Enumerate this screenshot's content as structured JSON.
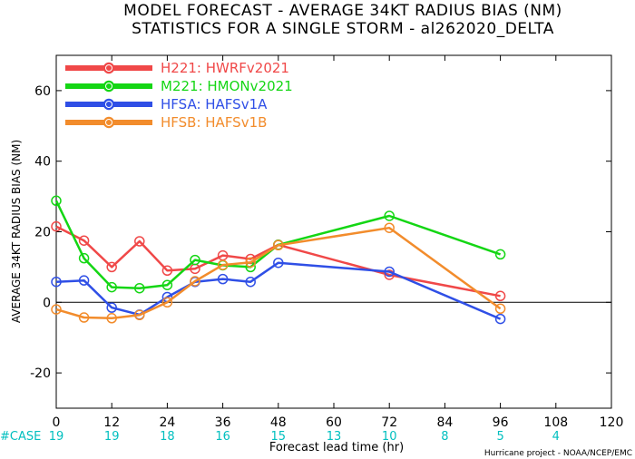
{
  "chart_data": {
    "type": "line",
    "title": "MODEL FORECAST - AVERAGE 34KT RADIUS BIAS (NM)",
    "subtitle": "STATISTICS FOR A SINGLE STORM - al262020_DELTA",
    "xlabel": "Forecast lead time (hr)",
    "ylabel": "AVERAGE 34KT RADIUS BIAS (NM)",
    "xlim": [
      0,
      120
    ],
    "ylim": [
      -30,
      70
    ],
    "x_ticks": [
      0,
      12,
      24,
      36,
      48,
      60,
      72,
      84,
      96,
      108,
      120
    ],
    "y_ticks": [
      -20,
      0,
      20,
      40,
      60
    ],
    "zero_line": true,
    "legend_position": "top-left",
    "series": [
      {
        "name": "H221: HWRFv2021",
        "color": "#f04848",
        "x": [
          0,
          6,
          12,
          18,
          24,
          30,
          36,
          42,
          48,
          72,
          96
        ],
        "values": [
          21.5,
          17.5,
          10,
          17.3,
          9,
          9.5,
          13.3,
          12.3,
          16.3,
          7.8,
          1.8
        ]
      },
      {
        "name": "M221: HMONv2021",
        "color": "#14d614",
        "x": [
          0,
          6,
          12,
          18,
          24,
          30,
          36,
          42,
          48,
          72,
          96
        ],
        "values": [
          28.8,
          12.5,
          4.3,
          4,
          4.9,
          12,
          10.5,
          10,
          16.3,
          24.5,
          13.6
        ]
      },
      {
        "name": "HFSA: HAFSv1A",
        "color": "#2f4fe6",
        "x": [
          0,
          6,
          12,
          18,
          24,
          30,
          36,
          42,
          48,
          72,
          96
        ],
        "values": [
          5.8,
          6.2,
          -1.5,
          -3.5,
          1.5,
          5.8,
          6.6,
          5.8,
          11.2,
          8.7,
          -4.7
        ]
      },
      {
        "name": "HFSB: HAFSv1B",
        "color": "#f28c2c",
        "x": [
          0,
          6,
          12,
          18,
          24,
          30,
          36,
          42,
          48,
          72,
          96
        ],
        "values": [
          -2,
          -4.3,
          -4.5,
          -3.6,
          0,
          6,
          10.6,
          11.3,
          16.2,
          21.1,
          -1.8
        ]
      }
    ],
    "case_label": "#CASE",
    "case_counts": [
      {
        "x": 0,
        "count": "19"
      },
      {
        "x": 12,
        "count": "19"
      },
      {
        "x": 24,
        "count": "18"
      },
      {
        "x": 36,
        "count": "16"
      },
      {
        "x": 48,
        "count": "15"
      },
      {
        "x": 60,
        "count": "13"
      },
      {
        "x": 72,
        "count": "10"
      },
      {
        "x": 84,
        "count": "8"
      },
      {
        "x": 96,
        "count": "5"
      },
      {
        "x": 108,
        "count": "4"
      }
    ],
    "credit": "Hurricane project - NOAA/NCEP/EMC"
  }
}
